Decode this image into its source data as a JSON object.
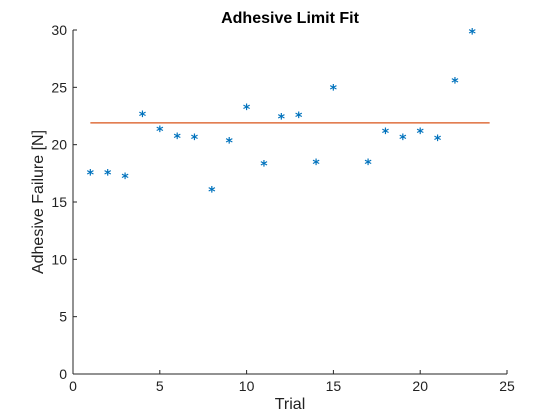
{
  "chart_data": {
    "type": "scatter",
    "title": "Adhesive Limit Fit",
    "xlabel": "Trial",
    "ylabel": "Adhesive Failure [N]",
    "xlim": [
      0,
      25
    ],
    "ylim": [
      0,
      30
    ],
    "xticks": [
      "0",
      "5",
      "10",
      "15",
      "20",
      "25"
    ],
    "yticks": [
      "0",
      "5",
      "10",
      "15",
      "20",
      "25",
      "30"
    ],
    "grid": false,
    "series": [
      {
        "type": "scatter",
        "marker": "*",
        "color": "#0072BD",
        "x": [
          1,
          2,
          3,
          4,
          5,
          6,
          7,
          8,
          9,
          10,
          11,
          12,
          13,
          14,
          15,
          17,
          18,
          19,
          20,
          21,
          22,
          23
        ],
        "y": [
          17.4,
          17.4,
          17.1,
          22.5,
          21.2,
          20.6,
          20.5,
          15.9,
          20.2,
          23.1,
          18.2,
          22.3,
          22.4,
          18.3,
          24.8,
          18.3,
          21.0,
          20.5,
          21.0,
          20.4,
          25.4,
          29.7
        ]
      },
      {
        "type": "line",
        "color": "#D95319",
        "x": [
          1,
          24
        ],
        "y": [
          21.9,
          21.9
        ]
      }
    ]
  }
}
